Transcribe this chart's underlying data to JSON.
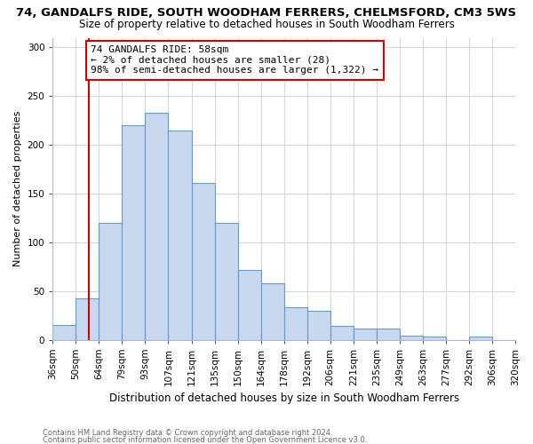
{
  "title": "74, GANDALFS RIDE, SOUTH WOODHAM FERRERS, CHELMSFORD, CM3 5WS",
  "subtitle": "Size of property relative to detached houses in South Woodham Ferrers",
  "xlabel": "Distribution of detached houses by size in South Woodham Ferrers",
  "ylabel": "Number of detached properties",
  "footnote1": "Contains HM Land Registry data © Crown copyright and database right 2024.",
  "footnote2": "Contains public sector information licensed under the Open Government Licence v3.0.",
  "bin_labels": [
    "36sqm",
    "50sqm",
    "64sqm",
    "79sqm",
    "93sqm",
    "107sqm",
    "121sqm",
    "135sqm",
    "150sqm",
    "164sqm",
    "178sqm",
    "192sqm",
    "206sqm",
    "221sqm",
    "235sqm",
    "249sqm",
    "263sqm",
    "277sqm",
    "292sqm",
    "306sqm",
    "320sqm"
  ],
  "bar_values": [
    15,
    42,
    120,
    220,
    233,
    215,
    161,
    120,
    72,
    58,
    33,
    30,
    14,
    11,
    11,
    4,
    3,
    0,
    3,
    0
  ],
  "bar_color": "#c8d8ee",
  "bar_edge_color": "#6699cc",
  "vline_x": 1.57,
  "vline_color": "#cc0000",
  "annotation_text": "74 GANDALFS RIDE: 58sqm\n← 2% of detached houses are smaller (28)\n98% of semi-detached houses are larger (1,322) →",
  "annotation_box_color": "white",
  "annotation_box_edge": "#cc0000",
  "ylim": [
    0,
    310
  ],
  "yticks": [
    0,
    50,
    100,
    150,
    200,
    250,
    300
  ],
  "title_fontsize": 9.5,
  "subtitle_fontsize": 8.5,
  "annot_fontsize": 8.0,
  "ylabel_fontsize": 8.0,
  "xlabel_fontsize": 8.5,
  "tick_fontsize": 7.5
}
